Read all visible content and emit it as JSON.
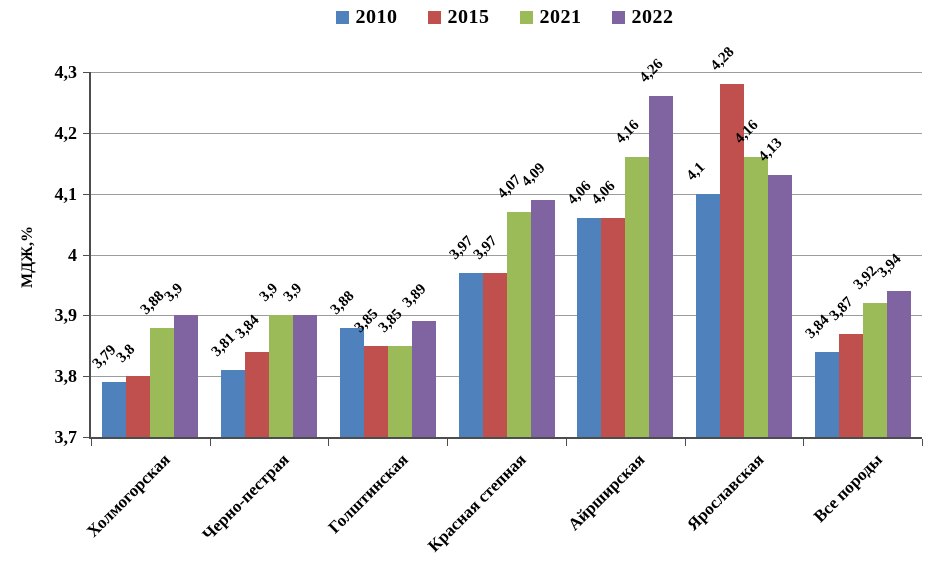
{
  "chart_data": {
    "type": "bar",
    "title": "",
    "xlabel": "",
    "ylabel": "МДЖ,%",
    "ylim": [
      3.7,
      4.3
    ],
    "ytick_step": 0.1,
    "ytick_labels": [
      "3,7",
      "3,8",
      "3,9",
      "4",
      "4,1",
      "4,2",
      "4,3"
    ],
    "grid": true,
    "legend_position": "top",
    "decimal_separator": ",",
    "categories": [
      "Холмогорская",
      "Черно-пестрая",
      "Голштинская",
      "Красная степная",
      "Айрширская",
      "Ярославская",
      "Все породы"
    ],
    "series": [
      {
        "name": "2010",
        "color": "#4F81BD",
        "values": [
          3.79,
          3.81,
          3.88,
          3.97,
          4.06,
          4.1,
          3.84
        ],
        "labels": [
          "3,79",
          "3,81",
          "3,88",
          "3,97",
          "4,06",
          "4,1",
          "3,84"
        ]
      },
      {
        "name": "2015",
        "color": "#C0504D",
        "values": [
          3.8,
          3.84,
          3.85,
          3.97,
          4.06,
          4.28,
          3.87
        ],
        "labels": [
          "3,8",
          "3,84",
          "3,85",
          "3,97",
          "4,06",
          "4,28",
          "3,87"
        ]
      },
      {
        "name": "2021",
        "color": "#9BBB59",
        "values": [
          3.88,
          3.9,
          3.85,
          4.07,
          4.16,
          4.16,
          3.92
        ],
        "labels": [
          "3,88",
          "3,9",
          "3,85",
          "4,07",
          "4,16",
          "4,16",
          "3,92"
        ]
      },
      {
        "name": "2022",
        "color": "#8064A2",
        "values": [
          3.9,
          3.9,
          3.89,
          4.09,
          4.26,
          4.13,
          3.94
        ],
        "labels": [
          "3,9",
          "3,9",
          "3,89",
          "4,09",
          "4,26",
          "4,13",
          "3,94"
        ]
      }
    ],
    "axis_color": "#4d4d4d",
    "gridline_color": "#9c9c9c"
  }
}
